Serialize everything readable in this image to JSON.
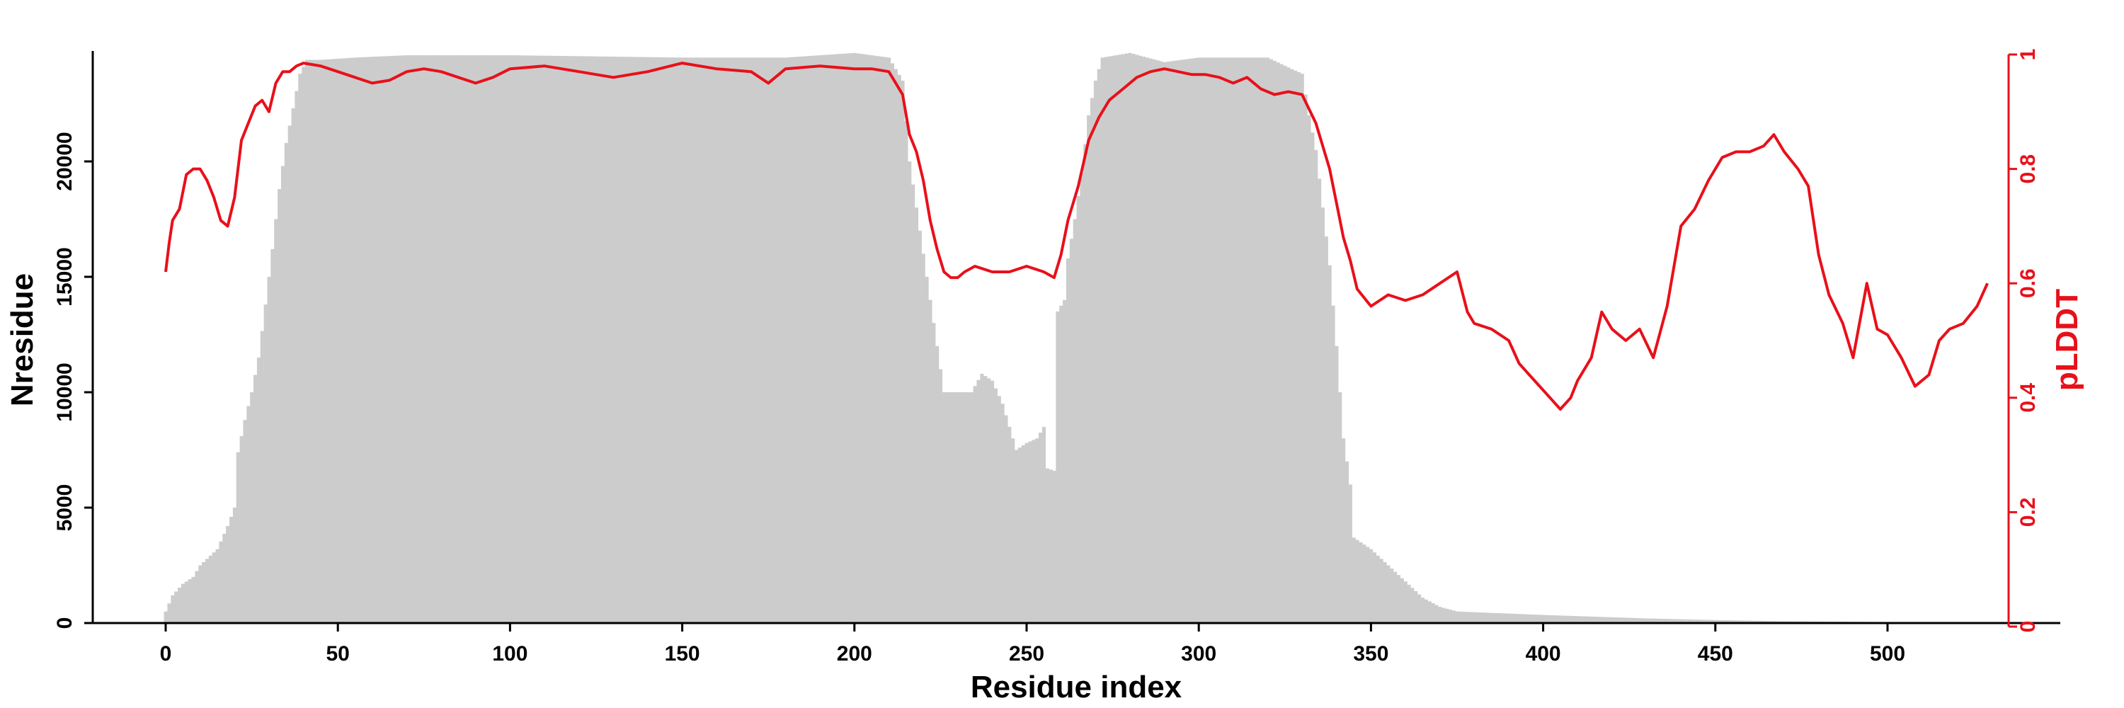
{
  "chart_data": {
    "type": "bar+line",
    "xlabel": "Residue index",
    "ylabel_left": "Nresidue",
    "ylabel_right": "pLDDT",
    "xlim": [
      -20,
      550
    ],
    "ylim_left": [
      0,
      25000
    ],
    "ylim_right": [
      0,
      1
    ],
    "x_ticks": [
      0,
      50,
      100,
      150,
      200,
      250,
      300,
      350,
      400,
      450,
      500
    ],
    "y_left_ticks": [
      0,
      5000,
      10000,
      15000,
      20000
    ],
    "y_right_ticks": [
      0,
      0.2,
      0.4,
      0.6,
      0.8,
      1
    ],
    "colors": {
      "bars": "#cccccc",
      "line": "#e8101a",
      "axis": "#000000",
      "right_axis": "#e8101a"
    },
    "nresidue_profile": [
      [
        0,
        500
      ],
      [
        2,
        1200
      ],
      [
        5,
        1700
      ],
      [
        8,
        2000
      ],
      [
        10,
        2500
      ],
      [
        15,
        3200
      ],
      [
        18,
        4200
      ],
      [
        20,
        5000
      ],
      [
        21,
        7400
      ],
      [
        23,
        8800
      ],
      [
        25,
        10000
      ],
      [
        27,
        11500
      ],
      [
        29,
        13800
      ],
      [
        31,
        16200
      ],
      [
        33,
        18800
      ],
      [
        35,
        20800
      ],
      [
        37,
        22300
      ],
      [
        39,
        23800
      ],
      [
        41,
        24400
      ],
      [
        45,
        24400
      ],
      [
        55,
        24500
      ],
      [
        70,
        24600
      ],
      [
        100,
        24600
      ],
      [
        150,
        24500
      ],
      [
        180,
        24500
      ],
      [
        200,
        24700
      ],
      [
        210,
        24500
      ],
      [
        214,
        23500
      ],
      [
        216,
        20000
      ],
      [
        218,
        18000
      ],
      [
        220,
        16000
      ],
      [
        222,
        14000
      ],
      [
        224,
        12000
      ],
      [
        226,
        10000
      ],
      [
        230,
        10000
      ],
      [
        234,
        10000
      ],
      [
        237,
        10800
      ],
      [
        240,
        10500
      ],
      [
        243,
        9500
      ],
      [
        245,
        8500
      ],
      [
        247,
        7500
      ],
      [
        250,
        7800
      ],
      [
        253,
        8000
      ],
      [
        255,
        8500
      ],
      [
        256,
        6700
      ],
      [
        258,
        6600
      ],
      [
        259,
        13500
      ],
      [
        261,
        14000
      ],
      [
        262,
        15800
      ],
      [
        264,
        17500
      ],
      [
        266,
        19500
      ],
      [
        268,
        22000
      ],
      [
        270,
        23500
      ],
      [
        272,
        24500
      ],
      [
        280,
        24700
      ],
      [
        290,
        24300
      ],
      [
        300,
        24500
      ],
      [
        310,
        24500
      ],
      [
        320,
        24500
      ],
      [
        327,
        24000
      ],
      [
        330,
        23800
      ],
      [
        332,
        22000
      ],
      [
        334,
        20500
      ],
      [
        336,
        18000
      ],
      [
        338,
        15500
      ],
      [
        340,
        12000
      ],
      [
        342,
        8000
      ],
      [
        344,
        6000
      ],
      [
        345,
        3700
      ],
      [
        350,
        3200
      ],
      [
        355,
        2500
      ],
      [
        360,
        1800
      ],
      [
        365,
        1100
      ],
      [
        370,
        700
      ],
      [
        375,
        500
      ],
      [
        400,
        350
      ],
      [
        430,
        200
      ],
      [
        450,
        130
      ],
      [
        470,
        80
      ],
      [
        500,
        40
      ],
      [
        529,
        20
      ]
    ],
    "plddt_profile": [
      [
        0,
        0.62
      ],
      [
        1,
        0.67
      ],
      [
        2,
        0.71
      ],
      [
        4,
        0.73
      ],
      [
        6,
        0.79
      ],
      [
        8,
        0.8
      ],
      [
        10,
        0.8
      ],
      [
        12,
        0.78
      ],
      [
        14,
        0.75
      ],
      [
        16,
        0.71
      ],
      [
        18,
        0.7
      ],
      [
        20,
        0.75
      ],
      [
        22,
        0.85
      ],
      [
        24,
        0.88
      ],
      [
        26,
        0.91
      ],
      [
        28,
        0.92
      ],
      [
        30,
        0.9
      ],
      [
        32,
        0.95
      ],
      [
        34,
        0.97
      ],
      [
        36,
        0.97
      ],
      [
        38,
        0.98
      ],
      [
        40,
        0.985
      ],
      [
        45,
        0.98
      ],
      [
        50,
        0.97
      ],
      [
        55,
        0.96
      ],
      [
        60,
        0.95
      ],
      [
        65,
        0.955
      ],
      [
        70,
        0.97
      ],
      [
        75,
        0.975
      ],
      [
        80,
        0.97
      ],
      [
        85,
        0.96
      ],
      [
        90,
        0.95
      ],
      [
        95,
        0.96
      ],
      [
        100,
        0.975
      ],
      [
        110,
        0.98
      ],
      [
        120,
        0.97
      ],
      [
        130,
        0.96
      ],
      [
        140,
        0.97
      ],
      [
        150,
        0.985
      ],
      [
        160,
        0.975
      ],
      [
        170,
        0.97
      ],
      [
        175,
        0.95
      ],
      [
        180,
        0.975
      ],
      [
        190,
        0.98
      ],
      [
        200,
        0.975
      ],
      [
        205,
        0.975
      ],
      [
        210,
        0.97
      ],
      [
        214,
        0.93
      ],
      [
        216,
        0.86
      ],
      [
        218,
        0.83
      ],
      [
        220,
        0.78
      ],
      [
        222,
        0.71
      ],
      [
        224,
        0.66
      ],
      [
        226,
        0.62
      ],
      [
        228,
        0.61
      ],
      [
        230,
        0.61
      ],
      [
        232,
        0.62
      ],
      [
        235,
        0.63
      ],
      [
        240,
        0.62
      ],
      [
        245,
        0.62
      ],
      [
        250,
        0.63
      ],
      [
        255,
        0.62
      ],
      [
        258,
        0.61
      ],
      [
        260,
        0.65
      ],
      [
        262,
        0.71
      ],
      [
        265,
        0.77
      ],
      [
        268,
        0.85
      ],
      [
        271,
        0.89
      ],
      [
        274,
        0.92
      ],
      [
        278,
        0.94
      ],
      [
        282,
        0.96
      ],
      [
        286,
        0.97
      ],
      [
        290,
        0.975
      ],
      [
        294,
        0.97
      ],
      [
        298,
        0.965
      ],
      [
        302,
        0.965
      ],
      [
        306,
        0.96
      ],
      [
        310,
        0.95
      ],
      [
        314,
        0.96
      ],
      [
        318,
        0.94
      ],
      [
        322,
        0.93
      ],
      [
        326,
        0.935
      ],
      [
        330,
        0.93
      ],
      [
        334,
        0.88
      ],
      [
        336,
        0.84
      ],
      [
        338,
        0.8
      ],
      [
        340,
        0.74
      ],
      [
        342,
        0.68
      ],
      [
        344,
        0.64
      ],
      [
        346,
        0.59
      ],
      [
        350,
        0.56
      ],
      [
        355,
        0.58
      ],
      [
        360,
        0.57
      ],
      [
        365,
        0.58
      ],
      [
        370,
        0.6
      ],
      [
        375,
        0.62
      ],
      [
        378,
        0.55
      ],
      [
        380,
        0.53
      ],
      [
        385,
        0.52
      ],
      [
        390,
        0.5
      ],
      [
        393,
        0.46
      ],
      [
        396,
        0.44
      ],
      [
        399,
        0.42
      ],
      [
        402,
        0.4
      ],
      [
        405,
        0.38
      ],
      [
        408,
        0.4
      ],
      [
        410,
        0.43
      ],
      [
        414,
        0.47
      ],
      [
        417,
        0.55
      ],
      [
        420,
        0.52
      ],
      [
        424,
        0.5
      ],
      [
        428,
        0.52
      ],
      [
        432,
        0.47
      ],
      [
        436,
        0.56
      ],
      [
        440,
        0.7
      ],
      [
        444,
        0.73
      ],
      [
        448,
        0.78
      ],
      [
        452,
        0.82
      ],
      [
        456,
        0.83
      ],
      [
        460,
        0.83
      ],
      [
        464,
        0.84
      ],
      [
        467,
        0.86
      ],
      [
        470,
        0.83
      ],
      [
        474,
        0.8
      ],
      [
        477,
        0.77
      ],
      [
        480,
        0.65
      ],
      [
        483,
        0.58
      ],
      [
        487,
        0.53
      ],
      [
        490,
        0.47
      ],
      [
        494,
        0.6
      ],
      [
        497,
        0.52
      ],
      [
        500,
        0.51
      ],
      [
        504,
        0.47
      ],
      [
        508,
        0.42
      ],
      [
        512,
        0.44
      ],
      [
        515,
        0.5
      ],
      [
        518,
        0.52
      ],
      [
        522,
        0.53
      ],
      [
        526,
        0.56
      ],
      [
        529,
        0.6
      ]
    ]
  }
}
